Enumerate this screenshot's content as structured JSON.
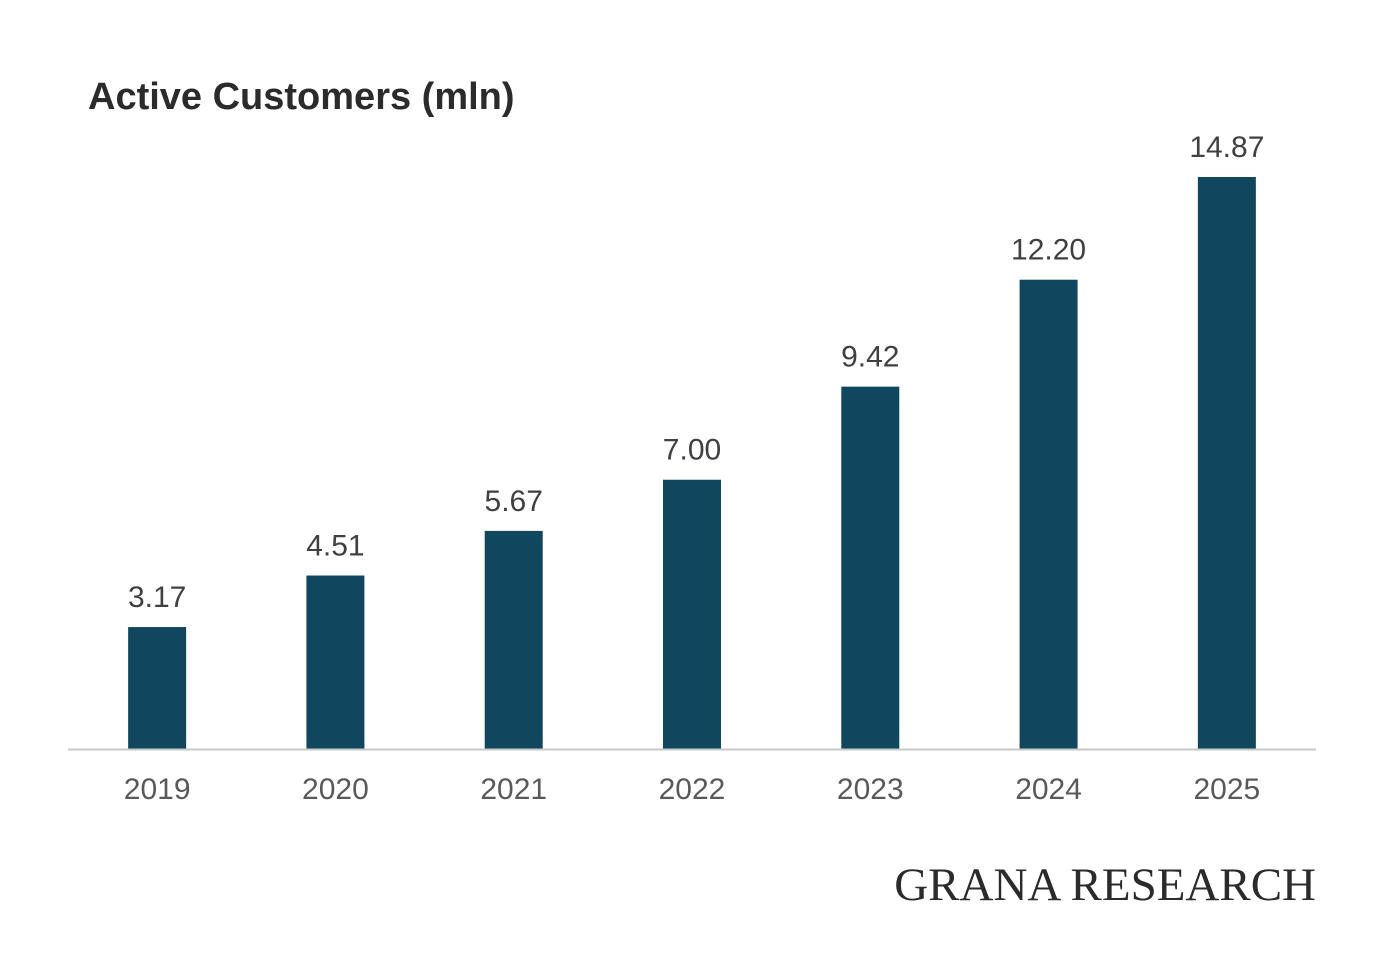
{
  "chart_data": {
    "type": "bar",
    "title": "Active Customers (mln)",
    "categories": [
      "2019",
      "2020",
      "2021",
      "2022",
      "2023",
      "2024",
      "2025"
    ],
    "values": [
      3.17,
      4.51,
      5.67,
      7.0,
      9.42,
      12.2,
      14.87
    ],
    "value_labels": [
      "3.17",
      "4.51",
      "5.67",
      "7.00",
      "9.42",
      "12.20",
      "14.87"
    ],
    "xlabel": "",
    "ylabel": "",
    "ylim": [
      0,
      14.87
    ],
    "grid": false,
    "legend": "none",
    "colors": {
      "bar": "#10475f",
      "axis": "#c8c8c8",
      "label": "#404040",
      "tick": "#595959"
    }
  },
  "brand": {
    "text": "GRANA RESEARCH"
  }
}
